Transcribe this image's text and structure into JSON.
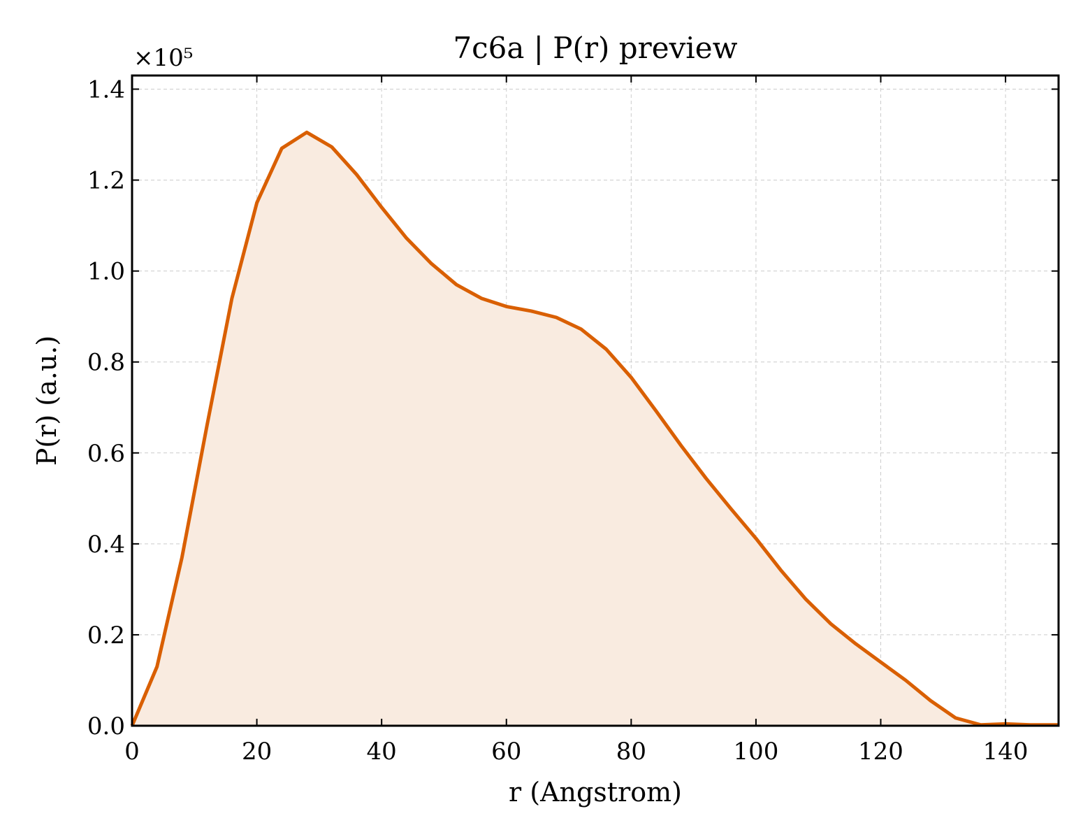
{
  "chart_data": {
    "type": "area",
    "title": "7c6a | P(r) preview",
    "xlabel": "r (Angstrom)",
    "ylabel": "P(r) (a.u.)",
    "y_multiplier_label": "×10⁵",
    "y_scale_factor": 100000,
    "xlim": [
      0,
      148.5
    ],
    "ylim": [
      0,
      1.43
    ],
    "x_ticks": [
      0,
      20,
      40,
      60,
      80,
      100,
      120,
      140
    ],
    "y_ticks": [
      0.0,
      0.2,
      0.4,
      0.6,
      0.8,
      1.0,
      1.2,
      1.4
    ],
    "x_tick_labels": [
      "0",
      "20",
      "40",
      "60",
      "80",
      "100",
      "120",
      "140"
    ],
    "y_tick_labels": [
      "0.0",
      "0.2",
      "0.4",
      "0.6",
      "0.8",
      "1.0",
      "1.2",
      "1.4"
    ],
    "grid": true,
    "line_color": "#d95f02",
    "fill_color": "#f9ebe0",
    "series": [
      {
        "x": [
          0,
          4,
          8,
          12,
          16,
          20,
          24,
          28,
          32,
          36,
          40,
          44,
          48,
          52,
          56,
          60,
          64,
          68,
          72,
          76,
          80,
          84,
          88,
          92,
          96,
          100,
          104,
          108,
          112,
          116,
          120,
          124,
          128,
          132,
          136,
          140,
          144,
          148.5
        ],
        "y": [
          0.0,
          0.13,
          0.37,
          0.66,
          0.94,
          1.15,
          1.27,
          1.305,
          1.273,
          1.212,
          1.14,
          1.072,
          1.016,
          0.97,
          0.94,
          0.922,
          0.912,
          0.898,
          0.872,
          0.828,
          0.766,
          0.692,
          0.616,
          0.544,
          0.477,
          0.412,
          0.342,
          0.278,
          0.224,
          0.18,
          0.14,
          0.1,
          0.055,
          0.017,
          0.002,
          0.004,
          0.002,
          0.002
        ]
      }
    ]
  }
}
